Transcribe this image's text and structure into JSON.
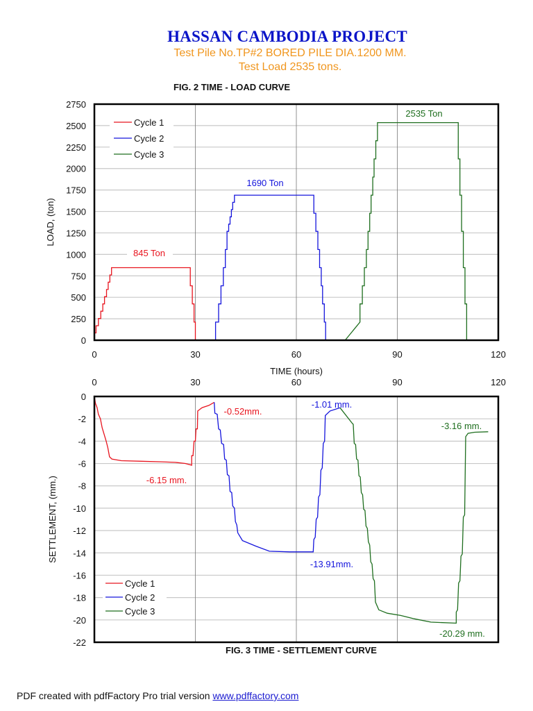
{
  "header": {
    "title": "HASSAN CAMBODIA PROJECT",
    "subtitle_line1": "Test Pile No.TP#2 BORED PILE DIA.1200 MM.",
    "subtitle_line2": "Test  Load  2535  tons."
  },
  "colors": {
    "title": "#0a14c8",
    "subtitle": "#f0961e",
    "cycle1": "#e8141e",
    "cycle2": "#1414dc",
    "cycle3": "#1e6e1e",
    "grid": "#c8c8c8",
    "axis": "#000000"
  },
  "footer": {
    "text": "PDF created with pdfFactory Pro trial version ",
    "link_text": "www.pdffactory.com"
  },
  "chart_data": [
    {
      "type": "line",
      "title": "FIG. 2 TIME - LOAD CURVE",
      "xlabel": "TIME (hours)",
      "ylabel": "LOAD, (ton)",
      "xlim": [
        0,
        120
      ],
      "ylim": [
        0,
        2750
      ],
      "x_ticks": [
        "0",
        "30",
        "60",
        "90",
        "120"
      ],
      "y_ticks": [
        "0",
        "250",
        "500",
        "750",
        "1000",
        "1250",
        "1500",
        "1750",
        "2000",
        "2250",
        "2500",
        "2750"
      ],
      "grid": true,
      "legend": [
        "Cycle 1",
        "Cycle 2",
        "Cycle 3"
      ],
      "legend_position": "upper left",
      "annotations": [
        {
          "text": "845 Ton",
          "series": "Cycle 1"
        },
        {
          "text": "1690 Ton",
          "series": "Cycle 2"
        },
        {
          "text": "2535 Ton",
          "series": "Cycle 3"
        }
      ],
      "series": [
        {
          "name": "Cycle 1",
          "points": [
            [
              0,
              0
            ],
            [
              0,
              85
            ],
            [
              0.5,
              85
            ],
            [
              0.5,
              169
            ],
            [
              1.2,
              169
            ],
            [
              1.2,
              253
            ],
            [
              1.9,
              253
            ],
            [
              1.9,
              338
            ],
            [
              2.5,
              338
            ],
            [
              2.5,
              423
            ],
            [
              3,
              423
            ],
            [
              3,
              507
            ],
            [
              3.6,
              507
            ],
            [
              3.6,
              591
            ],
            [
              4.1,
              591
            ],
            [
              4.1,
              676
            ],
            [
              4.6,
              676
            ],
            [
              4.6,
              760
            ],
            [
              5.1,
              760
            ],
            [
              5.1,
              845
            ],
            [
              28.5,
              845
            ],
            [
              28.5,
              634
            ],
            [
              29.1,
              634
            ],
            [
              29.1,
              423
            ],
            [
              29.6,
              423
            ],
            [
              29.6,
              211
            ],
            [
              30,
              211
            ],
            [
              30,
              0
            ],
            [
              36,
              0
            ]
          ]
        },
        {
          "name": "Cycle 2",
          "points": [
            [
              36,
              0
            ],
            [
              36,
              211
            ],
            [
              36.9,
              211
            ],
            [
              36.9,
              423
            ],
            [
              37.6,
              423
            ],
            [
              37.6,
              634
            ],
            [
              38.3,
              634
            ],
            [
              38.3,
              845
            ],
            [
              38.9,
              845
            ],
            [
              38.9,
              1056
            ],
            [
              39.4,
              1056
            ],
            [
              39.4,
              1268
            ],
            [
              39.9,
              1268
            ],
            [
              39.9,
              1352
            ],
            [
              40.3,
              1352
            ],
            [
              40.3,
              1437
            ],
            [
              40.7,
              1437
            ],
            [
              40.7,
              1521
            ],
            [
              41.1,
              1521
            ],
            [
              41.1,
              1606
            ],
            [
              41.6,
              1606
            ],
            [
              41.6,
              1690
            ],
            [
              65.2,
              1690
            ],
            [
              65.2,
              1479
            ],
            [
              65.8,
              1479
            ],
            [
              65.8,
              1268
            ],
            [
              66.4,
              1268
            ],
            [
              66.4,
              1056
            ],
            [
              66.9,
              1056
            ],
            [
              66.9,
              845
            ],
            [
              67.4,
              845
            ],
            [
              67.4,
              634
            ],
            [
              67.8,
              634
            ],
            [
              67.8,
              423
            ],
            [
              68.3,
              423
            ],
            [
              68.3,
              211
            ],
            [
              68.7,
              211
            ],
            [
              68.7,
              0
            ],
            [
              74.5,
              0
            ]
          ]
        },
        {
          "name": "Cycle 3",
          "points": [
            [
              74.5,
              0
            ],
            [
              78.9,
              211
            ],
            [
              78.9,
              423
            ],
            [
              79.6,
              423
            ],
            [
              79.6,
              634
            ],
            [
              80.2,
              634
            ],
            [
              80.2,
              845
            ],
            [
              80.8,
              845
            ],
            [
              80.8,
              1056
            ],
            [
              81.3,
              1056
            ],
            [
              81.3,
              1268
            ],
            [
              81.8,
              1268
            ],
            [
              81.8,
              1479
            ],
            [
              82.2,
              1479
            ],
            [
              82.2,
              1690
            ],
            [
              82.7,
              1690
            ],
            [
              82.7,
              1901
            ],
            [
              83.1,
              1901
            ],
            [
              83.1,
              2112
            ],
            [
              83.6,
              2112
            ],
            [
              83.6,
              2324
            ],
            [
              84.1,
              2324
            ],
            [
              84.1,
              2535
            ],
            [
              108.1,
              2535
            ],
            [
              108.1,
              2112
            ],
            [
              108.6,
              2112
            ],
            [
              108.6,
              1690
            ],
            [
              109.1,
              1690
            ],
            [
              109.1,
              1268
            ],
            [
              109.6,
              1268
            ],
            [
              109.6,
              845
            ],
            [
              110.1,
              845
            ],
            [
              110.1,
              423
            ],
            [
              110.6,
              423
            ],
            [
              110.6,
              0
            ],
            [
              117,
              0
            ]
          ]
        }
      ]
    },
    {
      "type": "line",
      "title": "FIG. 3  TIME - SETTLEMENT CURVE",
      "xlabel": "",
      "ylabel": "SETTLEMENT, (mm.)",
      "xlim": [
        0,
        120
      ],
      "ylim": [
        -22,
        0
      ],
      "x_ticks": [
        "0",
        "30",
        "60",
        "90",
        "120"
      ],
      "x_axis_position": "top",
      "y_ticks": [
        "0",
        "-2",
        "-4",
        "-6",
        "-8",
        "-10",
        "-12",
        "-14",
        "-16",
        "-18",
        "-20",
        "-22"
      ],
      "grid": true,
      "legend": [
        "Cycle 1",
        "Cycle 2",
        "Cycle 3"
      ],
      "legend_position": "lower left",
      "annotations": [
        {
          "text": "-6.15 mm.",
          "series": "Cycle 1"
        },
        {
          "text": "-0.52mm.",
          "series": "Cycle 1"
        },
        {
          "text": "-1.01 mm.",
          "series": "Cycle 2"
        },
        {
          "text": "-13.91mm.",
          "series": "Cycle 2"
        },
        {
          "text": "-3.16 mm.",
          "series": "Cycle 3"
        },
        {
          "text": "-20.29 mm.",
          "series": "Cycle 3"
        }
      ],
      "series": [
        {
          "name": "Cycle 1",
          "points": [
            [
              0,
              0
            ],
            [
              0.3,
              -0.6
            ],
            [
              0.8,
              -1.0
            ],
            [
              1.2,
              -1.6
            ],
            [
              1.8,
              -2.0
            ],
            [
              2.3,
              -2.8
            ],
            [
              2.9,
              -3.4
            ],
            [
              3.5,
              -4.0
            ],
            [
              4.0,
              -4.6
            ],
            [
              4.5,
              -5.4
            ],
            [
              5.2,
              -5.6
            ],
            [
              8,
              -5.75
            ],
            [
              14,
              -5.8
            ],
            [
              20,
              -5.85
            ],
            [
              24,
              -5.9
            ],
            [
              27,
              -6.0
            ],
            [
              28.9,
              -6.15
            ],
            [
              28.9,
              -5.3
            ],
            [
              29.3,
              -5.3
            ],
            [
              29.6,
              -4.0
            ],
            [
              30,
              -4.0
            ],
            [
              30.2,
              -2.9
            ],
            [
              30.6,
              -2.9
            ],
            [
              30.7,
              -1.3
            ],
            [
              32,
              -1.0
            ],
            [
              34,
              -0.8
            ],
            [
              35.6,
              -0.52
            ]
          ]
        },
        {
          "name": "Cycle 2",
          "points": [
            [
              35.6,
              -0.52
            ],
            [
              35.8,
              -1.5
            ],
            [
              36.5,
              -1.6
            ],
            [
              36.9,
              -2.9
            ],
            [
              37.4,
              -3.0
            ],
            [
              37.8,
              -4.2
            ],
            [
              38.4,
              -4.3
            ],
            [
              38.7,
              -5.6
            ],
            [
              39.2,
              -5.7
            ],
            [
              39.5,
              -7.0
            ],
            [
              40.0,
              -7.1
            ],
            [
              40.3,
              -8.5
            ],
            [
              40.8,
              -8.6
            ],
            [
              41.1,
              -9.8
            ],
            [
              41.6,
              -10.0
            ],
            [
              41.9,
              -11.2
            ],
            [
              42.3,
              -11.5
            ],
            [
              42.6,
              -12.2
            ],
            [
              44,
              -12.9
            ],
            [
              48,
              -13.4
            ],
            [
              52,
              -13.85
            ],
            [
              58,
              -13.91
            ],
            [
              65,
              -13.91
            ],
            [
              65.2,
              -12.8
            ],
            [
              65.6,
              -12.6
            ],
            [
              65.9,
              -11.0
            ],
            [
              66.3,
              -10.8
            ],
            [
              66.6,
              -9.0
            ],
            [
              67.0,
              -8.8
            ],
            [
              67.3,
              -6.6
            ],
            [
              67.7,
              -6.4
            ],
            [
              68.0,
              -4.2
            ],
            [
              68.4,
              -4.0
            ],
            [
              68.6,
              -1.7
            ],
            [
              70,
              -1.3
            ],
            [
              73,
              -1.01
            ]
          ]
        },
        {
          "name": "Cycle 3",
          "points": [
            [
              73,
              -1.01
            ],
            [
              76.6,
              -2.4
            ],
            [
              76.9,
              -2.5
            ],
            [
              77.2,
              -4.2
            ],
            [
              77.6,
              -4.3
            ],
            [
              77.9,
              -5.6
            ],
            [
              78.3,
              -5.7
            ],
            [
              78.6,
              -7.1
            ],
            [
              79,
              -7.2
            ],
            [
              79.3,
              -8.6
            ],
            [
              79.7,
              -8.8
            ],
            [
              80,
              -10.1
            ],
            [
              80.4,
              -10.2
            ],
            [
              80.7,
              -11.6
            ],
            [
              81.1,
              -11.8
            ],
            [
              81.4,
              -13.0
            ],
            [
              81.8,
              -13.3
            ],
            [
              82.1,
              -14.8
            ],
            [
              82.5,
              -15.0
            ],
            [
              82.8,
              -16.3
            ],
            [
              83.2,
              -16.5
            ],
            [
              83.5,
              -18.4
            ],
            [
              84.5,
              -19.1
            ],
            [
              87,
              -19.4
            ],
            [
              91,
              -19.6
            ],
            [
              95,
              -19.9
            ],
            [
              100,
              -20.2
            ],
            [
              107.5,
              -20.29
            ],
            [
              107.5,
              -19.3
            ],
            [
              107.9,
              -19.1
            ],
            [
              108.2,
              -16.7
            ],
            [
              108.6,
              -16.5
            ],
            [
              108.9,
              -14.3
            ],
            [
              109.3,
              -14.1
            ],
            [
              109.6,
              -10.8
            ],
            [
              110.0,
              -10.6
            ],
            [
              110.3,
              -3.6
            ],
            [
              111,
              -3.3
            ],
            [
              113,
              -3.2
            ],
            [
              117,
              -3.16
            ]
          ]
        }
      ]
    }
  ]
}
